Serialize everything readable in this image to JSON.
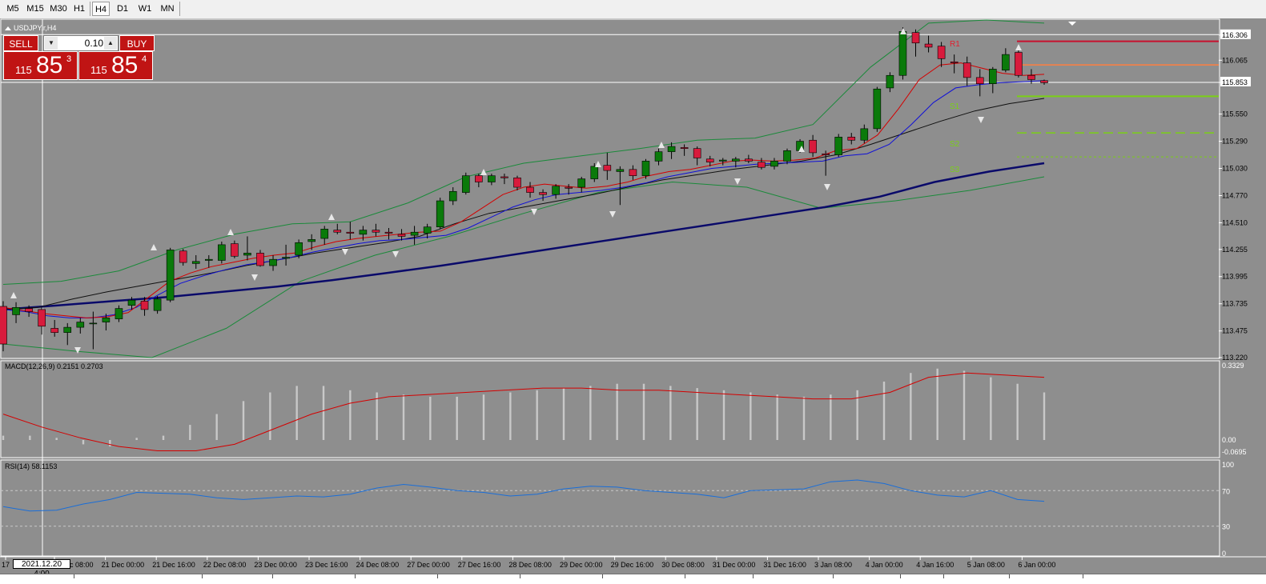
{
  "timeframes": [
    "M5",
    "M15",
    "M30",
    "H1",
    "H4",
    "D1",
    "W1",
    "MN"
  ],
  "selected_timeframe": "H4",
  "symbol_title": "USDJPY.r,H4",
  "trade": {
    "sell_label": "SELL",
    "buy_label": "BUY",
    "lot": "0.10",
    "bid_small": "115",
    "bid_big": "85",
    "bid_sup": "3",
    "ask_small": "115",
    "ask_big": "85",
    "ask_sup": "4"
  },
  "price_axis_labels": [
    "116.306",
    "116.065",
    "115.853",
    "115.550",
    "115.290",
    "115.030",
    "114.770",
    "114.510",
    "114.255",
    "113.995",
    "113.735",
    "113.475",
    "113.220"
  ],
  "current_price": "115.853",
  "pivot_labels": [
    "R1",
    "S1",
    "S2",
    "S3"
  ],
  "time_labels": [
    "17",
    "21 Dec 08:00",
    "21 Dec 00:00",
    "21 Dec 16:00",
    "22 Dec 08:00",
    "23 Dec 00:00",
    "23 Dec 16:00",
    "24 Dec 08:00",
    "27 Dec 00:00",
    "27 Dec 16:00",
    "28 Dec 08:00",
    "29 Dec 00:00",
    "29 Dec 16:00",
    "30 Dec 08:00",
    "31 Dec 00:00",
    "31 Dec 16:00",
    "3 Jan 08:00",
    "4 Jan 00:00",
    "4 Jan 16:00",
    "5 Jan 08:00",
    "6 Jan 00:00"
  ],
  "cursor_time": "2021.12.20 4:00",
  "macd": {
    "title": "MACD(12,26,9) 0.2151 0.2703",
    "axis_labels": [
      "0.3329",
      "0.00",
      "-0.0695"
    ]
  },
  "rsi": {
    "title": "RSI(14) 58.1153",
    "axis_labels": [
      "100",
      "70",
      "30",
      "0"
    ]
  },
  "colors": {
    "background": "#8e8e8e",
    "bull": "#0a7a0a",
    "bear": "#d81b3c",
    "ma_fast": "#d40000",
    "ma_mid": "#1010d8",
    "ma_slow": "#101010",
    "ma_long": "#0a0a6a",
    "bands": "#1a8a3a",
    "rsi": "#1a6ed8",
    "macd_signal": "#d40000",
    "macd_hist": "#c8c8c8",
    "r1": "#c8102e",
    "pivot": "#ff7f3f",
    "support": "#7ad016"
  },
  "chart_data": {
    "type": "candlestick",
    "ylim": [
      113.22,
      116.45
    ],
    "candles": [
      [
        113.71,
        113.76,
        113.28,
        113.35
      ],
      [
        113.63,
        113.75,
        113.55,
        113.7
      ],
      [
        113.69,
        113.72,
        113.61,
        113.66
      ],
      [
        113.68,
        113.7,
        113.44,
        113.52
      ],
      [
        113.5,
        113.58,
        113.42,
        113.46
      ],
      [
        113.46,
        113.55,
        113.34,
        113.51
      ],
      [
        113.51,
        113.6,
        113.45,
        113.56
      ],
      [
        113.55,
        113.66,
        113.3,
        113.55
      ],
      [
        113.56,
        113.64,
        113.48,
        113.6
      ],
      [
        113.59,
        113.72,
        113.56,
        113.69
      ],
      [
        113.72,
        113.8,
        113.68,
        113.77
      ],
      [
        113.76,
        113.8,
        113.62,
        113.68
      ],
      [
        113.67,
        113.81,
        113.64,
        113.78
      ],
      [
        113.77,
        114.27,
        113.75,
        114.25
      ],
      [
        114.24,
        114.26,
        114.1,
        114.13
      ],
      [
        114.12,
        114.2,
        114.07,
        114.14
      ],
      [
        114.15,
        114.2,
        114.08,
        114.16
      ],
      [
        114.15,
        114.33,
        114.12,
        114.3
      ],
      [
        114.31,
        114.34,
        114.17,
        114.19
      ],
      [
        114.2,
        114.38,
        114.15,
        114.22
      ],
      [
        114.22,
        114.25,
        114.09,
        114.1
      ],
      [
        114.1,
        114.2,
        114.05,
        114.16
      ],
      [
        114.17,
        114.3,
        114.1,
        114.18
      ],
      [
        114.2,
        114.35,
        114.17,
        114.32
      ],
      [
        114.33,
        114.4,
        114.25,
        114.35
      ],
      [
        114.36,
        114.48,
        114.3,
        114.45
      ],
      [
        114.44,
        114.5,
        114.4,
        114.42
      ],
      [
        114.42,
        114.52,
        114.35,
        114.41
      ],
      [
        114.4,
        114.48,
        114.34,
        114.44
      ],
      [
        114.44,
        114.5,
        114.38,
        114.42
      ],
      [
        114.42,
        114.46,
        114.35,
        114.41
      ],
      [
        114.4,
        114.45,
        114.34,
        114.38
      ],
      [
        114.39,
        114.48,
        114.3,
        114.42
      ],
      [
        114.41,
        114.5,
        114.36,
        114.47
      ],
      [
        114.47,
        114.75,
        114.45,
        114.72
      ],
      [
        114.72,
        114.85,
        114.68,
        114.81
      ],
      [
        114.8,
        114.99,
        114.78,
        114.96
      ],
      [
        114.96,
        114.98,
        114.85,
        114.9
      ],
      [
        114.9,
        114.98,
        114.87,
        114.96
      ],
      [
        114.95,
        114.98,
        114.88,
        114.94
      ],
      [
        114.94,
        114.96,
        114.82,
        114.85
      ],
      [
        114.85,
        114.9,
        114.75,
        114.8
      ],
      [
        114.8,
        114.83,
        114.72,
        114.78
      ],
      [
        114.78,
        114.88,
        114.74,
        114.86
      ],
      [
        114.85,
        114.88,
        114.78,
        114.84
      ],
      [
        114.85,
        114.95,
        114.8,
        114.93
      ],
      [
        114.93,
        115.08,
        114.9,
        115.05
      ],
      [
        115.06,
        115.18,
        114.92,
        115.01
      ],
      [
        115.0,
        115.05,
        114.68,
        115.02
      ],
      [
        115.02,
        115.06,
        114.92,
        114.96
      ],
      [
        114.96,
        115.12,
        114.93,
        115.1
      ],
      [
        115.1,
        115.22,
        115.06,
        115.19
      ],
      [
        115.19,
        115.28,
        115.12,
        115.24
      ],
      [
        115.23,
        115.26,
        115.15,
        115.22
      ],
      [
        115.22,
        115.24,
        115.06,
        115.13
      ],
      [
        115.12,
        115.15,
        115.05,
        115.09
      ],
      [
        115.1,
        115.13,
        115.06,
        115.11
      ],
      [
        115.1,
        115.14,
        115.04,
        115.12
      ],
      [
        115.12,
        115.16,
        115.08,
        115.1
      ],
      [
        115.09,
        115.13,
        115.02,
        115.04
      ],
      [
        115.05,
        115.13,
        115.02,
        115.1
      ],
      [
        115.1,
        115.22,
        115.07,
        115.2
      ],
      [
        115.2,
        115.31,
        115.18,
        115.29
      ],
      [
        115.3,
        115.35,
        115.14,
        115.18
      ],
      [
        115.17,
        115.2,
        114.96,
        115.16
      ],
      [
        115.16,
        115.36,
        115.14,
        115.33
      ],
      [
        115.33,
        115.37,
        115.26,
        115.3
      ],
      [
        115.3,
        115.45,
        115.27,
        115.41
      ],
      [
        115.41,
        115.81,
        115.38,
        115.79
      ],
      [
        115.8,
        115.95,
        115.76,
        115.92
      ],
      [
        115.92,
        116.38,
        115.88,
        116.34
      ],
      [
        116.33,
        116.36,
        116.1,
        116.23
      ],
      [
        116.22,
        116.3,
        116.14,
        116.19
      ],
      [
        116.2,
        116.24,
        116.0,
        116.08
      ],
      [
        116.05,
        116.12,
        115.94,
        116.04
      ],
      [
        116.04,
        116.1,
        115.82,
        115.9
      ],
      [
        115.9,
        115.98,
        115.72,
        115.84
      ],
      [
        115.84,
        116.0,
        115.75,
        115.98
      ],
      [
        115.97,
        116.18,
        115.95,
        116.12
      ],
      [
        116.14,
        116.2,
        115.9,
        115.92
      ],
      [
        115.92,
        115.98,
        115.84,
        115.88
      ],
      [
        115.87,
        115.88,
        115.83,
        115.85
      ]
    ],
    "ma_fast": [
      113.7,
      113.67,
      113.64,
      113.62,
      113.6,
      113.61,
      113.65,
      113.8,
      113.95,
      114.03,
      114.09,
      114.13,
      114.17,
      114.2,
      114.22,
      114.28,
      114.33,
      114.36,
      114.38,
      114.4,
      114.42,
      114.43,
      114.52,
      114.65,
      114.78,
      114.85,
      114.88,
      114.86,
      114.84,
      114.86,
      114.9,
      114.96,
      115.0,
      115.02,
      115.06,
      115.1,
      115.11,
      115.1,
      115.11,
      115.13,
      115.2,
      115.22,
      115.35,
      115.6,
      115.88,
      116.02,
      116.04,
      115.99,
      115.94,
      115.92,
      115.93
    ],
    "ma_mid": [
      113.68,
      113.66,
      113.62,
      113.6,
      113.6,
      113.63,
      113.7,
      113.82,
      113.93,
      114.0,
      114.06,
      114.11,
      114.14,
      114.18,
      114.23,
      114.27,
      114.31,
      114.34,
      114.35,
      114.37,
      114.39,
      114.46,
      114.56,
      114.66,
      114.73,
      114.78,
      114.8,
      114.82,
      114.85,
      114.89,
      114.95,
      114.99,
      115.03,
      115.05,
      115.07,
      115.08,
      115.09,
      115.1,
      115.15,
      115.17,
      115.26,
      115.45,
      115.66,
      115.8,
      115.83,
      115.85,
      115.86,
      115.87
    ],
    "ma_slow": [
      113.68,
      113.7,
      113.78,
      113.85,
      113.91,
      113.97,
      114.03,
      114.1,
      114.16,
      114.22,
      114.27,
      114.32,
      114.38,
      114.5,
      114.6,
      114.66,
      114.72,
      114.78,
      114.85,
      114.92,
      114.97,
      115.02,
      115.06,
      115.1,
      115.16,
      115.26,
      115.37,
      115.48,
      115.58,
      115.65,
      115.7
    ],
    "ma_long": [
      113.68,
      113.72,
      113.76,
      113.8,
      113.85,
      113.9,
      113.96,
      114.03,
      114.1,
      114.18,
      114.26,
      114.34,
      114.42,
      114.5,
      114.58,
      114.66,
      114.76,
      114.9,
      115.0,
      115.08
    ],
    "bands_upper": [
      113.92,
      113.95,
      114.05,
      114.25,
      114.4,
      114.5,
      114.52,
      114.7,
      114.95,
      115.08,
      115.15,
      115.22,
      115.3,
      115.32,
      115.45,
      116.0,
      116.42,
      116.45,
      116.42
    ],
    "bands_lower": [
      113.35,
      113.28,
      113.22,
      113.5,
      113.95,
      114.2,
      114.38,
      114.6,
      114.8,
      114.9,
      114.85,
      114.65,
      114.72,
      114.82,
      114.95
    ],
    "pivots": {
      "R1": 116.3,
      "P": 116.02,
      "S1": 115.72,
      "S2": 115.37,
      "S3": 115.14
    },
    "macd_hist": [
      0.02,
      0.02,
      0.01,
      -0.02,
      -0.03,
      0.01,
      0.02,
      0.07,
      0.12,
      0.18,
      0.22,
      0.25,
      0.25,
      0.23,
      0.22,
      0.21,
      0.2,
      0.2,
      0.21,
      0.22,
      0.23,
      0.24,
      0.25,
      0.26,
      0.26,
      0.25,
      0.24,
      0.23,
      0.22,
      0.21,
      0.2,
      0.21,
      0.23,
      0.27,
      0.31,
      0.33,
      0.32,
      0.29,
      0.26,
      0.22
    ],
    "macd_signal": [
      0.12,
      0.06,
      0.01,
      -0.03,
      -0.05,
      -0.05,
      -0.02,
      0.05,
      0.12,
      0.17,
      0.2,
      0.21,
      0.22,
      0.23,
      0.24,
      0.24,
      0.23,
      0.23,
      0.22,
      0.21,
      0.2,
      0.19,
      0.19,
      0.22,
      0.29,
      0.31,
      0.3,
      0.29
    ],
    "rsi_values": [
      52,
      47,
      48,
      55,
      60,
      68,
      67,
      66,
      62,
      60,
      62,
      64,
      63,
      66,
      73,
      77,
      74,
      70,
      68,
      64,
      66,
      72,
      75,
      74,
      70,
      68,
      66,
      62,
      70,
      71,
      72,
      80,
      82,
      78,
      70,
      65,
      63,
      70,
      60,
      58
    ]
  }
}
